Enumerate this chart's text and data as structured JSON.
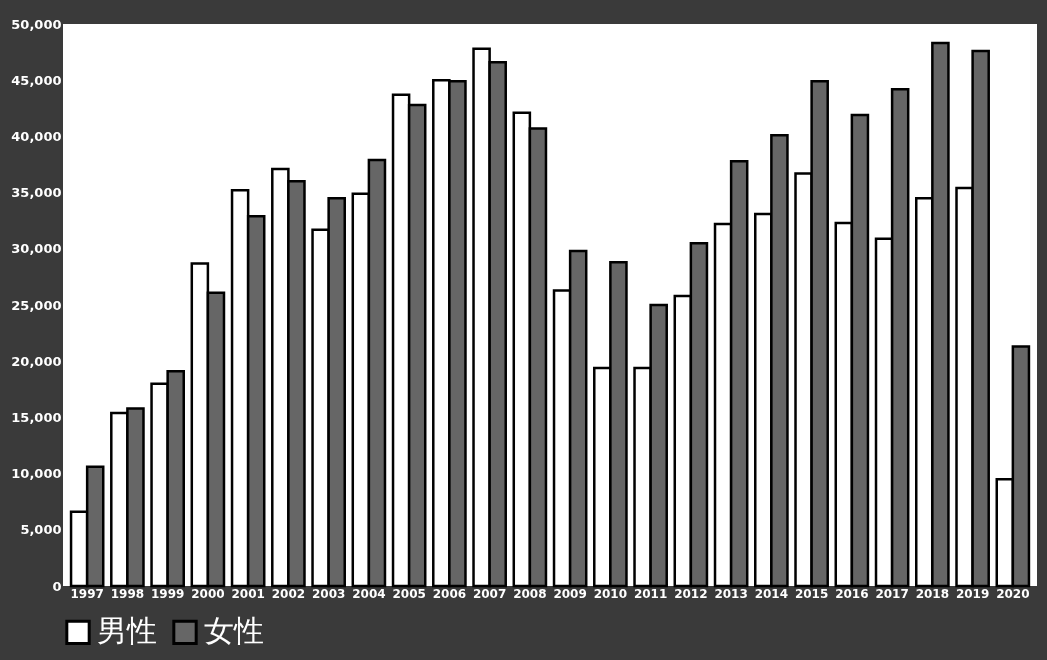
{
  "chart_data": {
    "type": "bar",
    "categories": [
      "1997",
      "1998",
      "1999",
      "2000",
      "2001",
      "2002",
      "2003",
      "2004",
      "2005",
      "2006",
      "2007",
      "2008",
      "2009",
      "2010",
      "2011",
      "2012",
      "2013",
      "2014",
      "2015",
      "2016",
      "2017",
      "2018",
      "2019",
      "2020"
    ],
    "series": [
      {
        "name": "男性",
        "color": "#ffffff",
        "values": [
          6600,
          15400,
          18000,
          28700,
          35200,
          37100,
          31700,
          34900,
          43700,
          45000,
          47800,
          42100,
          26300,
          19400,
          19400,
          25800,
          32200,
          33100,
          36700,
          32300,
          30900,
          34500,
          35400,
          9500
        ]
      },
      {
        "name": "女性",
        "color": "#666666",
        "values": [
          10600,
          15800,
          19100,
          26100,
          32900,
          36000,
          34500,
          37900,
          42800,
          44900,
          46600,
          40700,
          29800,
          28800,
          25000,
          30500,
          37800,
          40100,
          44900,
          41900,
          44200,
          48300,
          47600,
          21300
        ]
      }
    ],
    "ylim": [
      0,
      50000
    ],
    "yticks": [
      0,
      {
        "value": 5000,
        "label": "5,000"
      },
      {
        "value": 10000,
        "label": "10,000"
      },
      {
        "value": 15000,
        "label": "15,000"
      },
      {
        "value": 20000,
        "label": "20,000"
      },
      {
        "value": 25000,
        "label": "25,000"
      },
      {
        "value": 30000,
        "label": "30,000"
      },
      {
        "value": 35000,
        "label": "35,000"
      },
      {
        "value": 40000,
        "label": "40,000"
      },
      {
        "value": 45000,
        "label": "45,000"
      },
      {
        "value": 50000,
        "label": "50,000"
      }
    ],
    "grid": false,
    "legend": "bottom"
  }
}
